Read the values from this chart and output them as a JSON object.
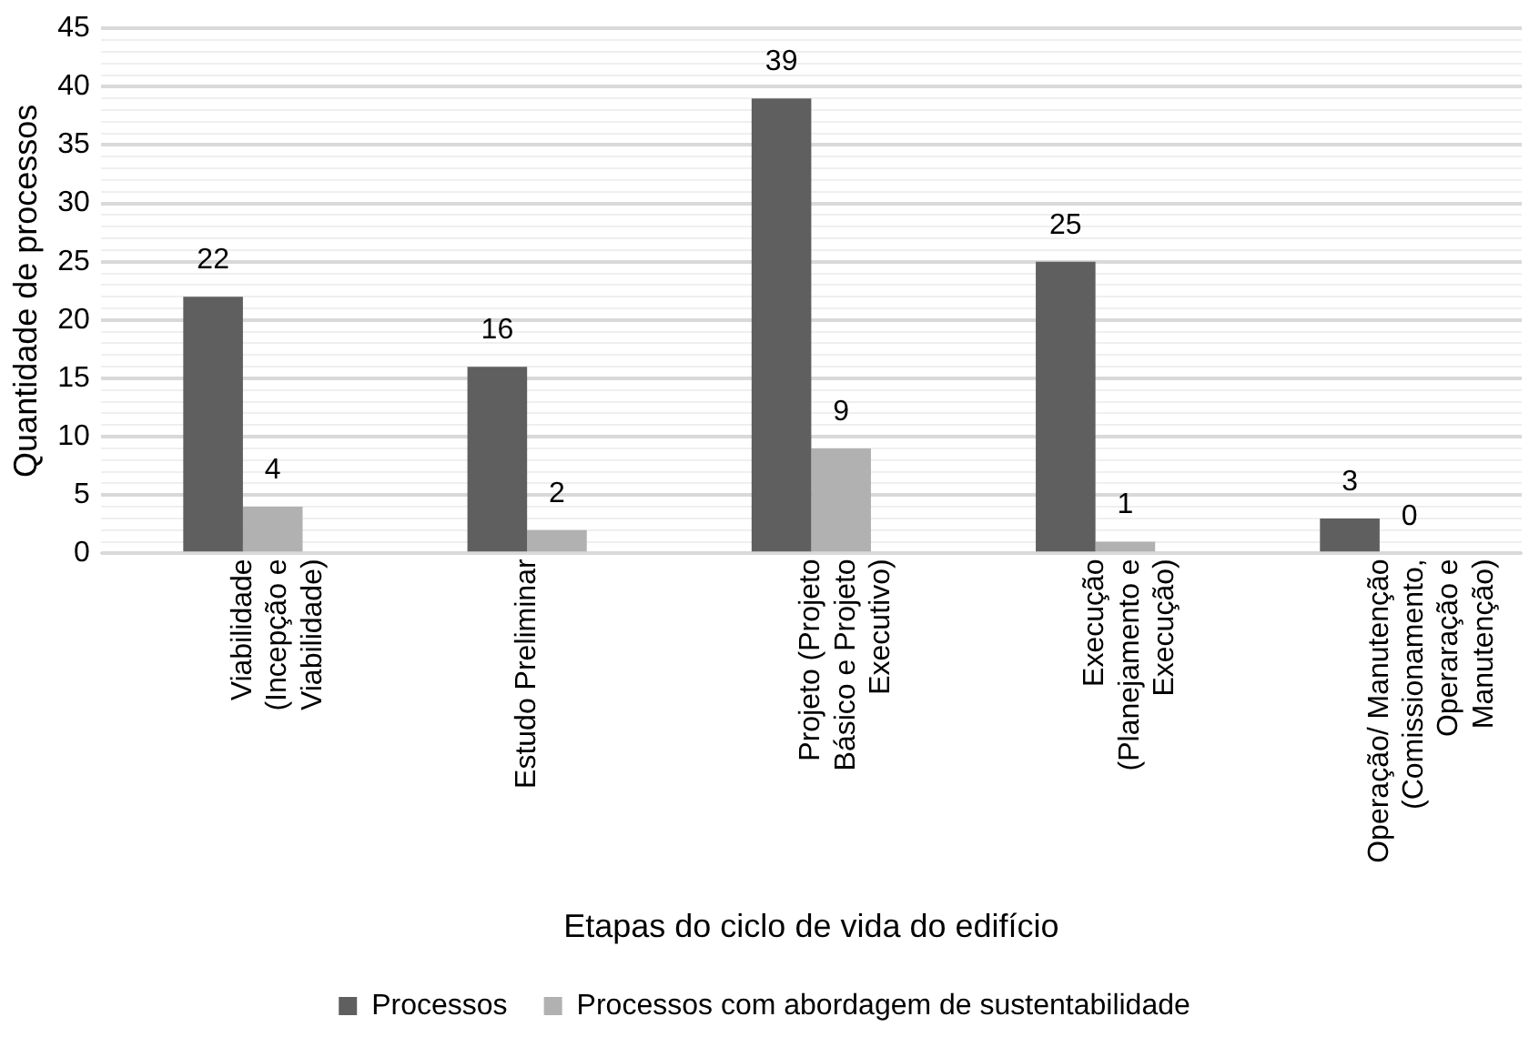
{
  "chart_data": {
    "type": "bar",
    "xlabel": "Etapas do ciclo de vida do edifício",
    "ylabel": "Quantidade de processos",
    "categories": [
      "Viabilidade (Incepção e Viabilidade)",
      "Estudo Preliminar",
      "Projeto (Projeto Básico e Projeto Executivo)",
      "Execução (Planejamento e Execução)",
      "Operação/ Manutenção (Comissionamento, Operaração e Manutenção)"
    ],
    "series": [
      {
        "name": "Processos",
        "color": "#5f5f5f",
        "values": [
          22,
          16,
          39,
          25,
          3
        ]
      },
      {
        "name": "Processos com abordagem de sustentabilidade",
        "color": "#b1b1b1",
        "values": [
          4,
          2,
          9,
          1,
          0
        ]
      }
    ],
    "ylim": [
      0,
      45
    ],
    "yticks": [
      0,
      {
        "value": 1,
        "label": null
      },
      {
        "value": 2,
        "label": null
      },
      {
        "value": 3,
        "label": null
      },
      {
        "value": 4,
        "label": null
      },
      5,
      {
        "value": 6,
        "label": null
      },
      {
        "value": 7,
        "label": null
      },
      {
        "value": 8,
        "label": null
      },
      {
        "value": 9,
        "label": null
      },
      10,
      {
        "value": 11,
        "label": null
      },
      {
        "value": 12,
        "label": null
      },
      {
        "value": 13,
        "label": null
      },
      {
        "value": 14,
        "label": null
      },
      15,
      {
        "value": 16,
        "label": null
      },
      {
        "value": 17,
        "label": null
      },
      {
        "value": 18,
        "label": null
      },
      {
        "value": 19,
        "label": null
      },
      20,
      {
        "value": 21,
        "label": null
      },
      {
        "value": 22,
        "label": null
      },
      {
        "value": 23,
        "label": null
      },
      {
        "value": 24,
        "label": null
      },
      25,
      {
        "value": 26,
        "label": null
      },
      {
        "value": 27,
        "label": null
      },
      {
        "value": 28,
        "label": null
      },
      {
        "value": 29,
        "label": null
      },
      30,
      {
        "value": 31,
        "label": null
      },
      {
        "value": 32,
        "label": null
      },
      {
        "value": 33,
        "label": null
      },
      {
        "value": 34,
        "label": null
      },
      35,
      {
        "value": 36,
        "label": null
      },
      {
        "value": 37,
        "label": null
      },
      {
        "value": 38,
        "label": null
      },
      {
        "value": 39,
        "label": null
      },
      40,
      {
        "value": 41,
        "label": null
      },
      {
        "value": 42,
        "label": null
      },
      {
        "value": 43,
        "label": null
      },
      {
        "value": 44,
        "label": null
      },
      45
    ],
    "grid": "y",
    "legend": "bottom",
    "data_labels": true
  }
}
